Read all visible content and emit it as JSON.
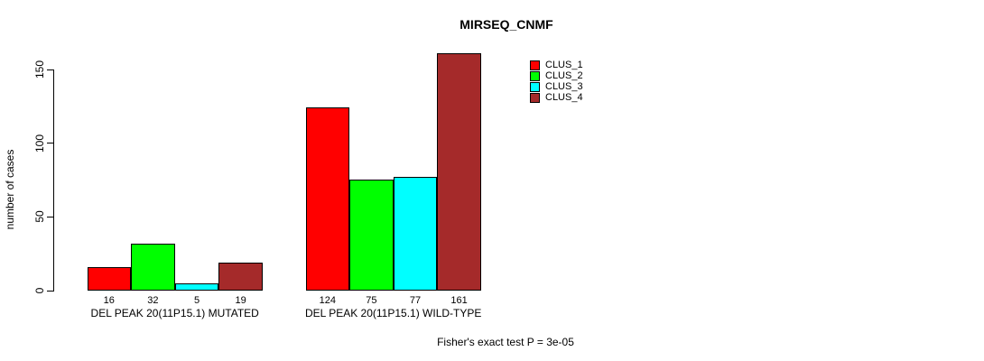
{
  "figure": {
    "title": "MIRSEQ_CNMF",
    "ylabel": "number of cases",
    "footer": "Fisher's exact test P = 3e-05"
  },
  "chart_data": {
    "type": "bar",
    "title": "MIRSEQ_CNMF",
    "xlabel": "",
    "ylabel": "number of cases",
    "categories": [
      "DEL PEAK 20(11P15.1) MUTATED",
      "DEL PEAK 20(11P15.1) WILD-TYPE"
    ],
    "series": [
      {
        "name": "CLUS_1",
        "color": "#FF0000",
        "values": [
          16,
          124
        ]
      },
      {
        "name": "CLUS_2",
        "color": "#00FF00",
        "values": [
          32,
          75
        ]
      },
      {
        "name": "CLUS_3",
        "color": "#00FFFF",
        "values": [
          5,
          77
        ]
      },
      {
        "name": "CLUS_4",
        "color": "#A52A2A",
        "values": [
          19,
          161
        ]
      }
    ],
    "bar_value_labels": [
      [
        "16",
        "32",
        "5",
        "19"
      ],
      [
        "124",
        "75",
        "77",
        "161"
      ]
    ],
    "yticks": [
      0,
      50,
      100,
      150
    ],
    "ylim": [
      0,
      165
    ],
    "grid": false,
    "legend_position": "top-right",
    "bar_border_color": "#000000",
    "annotation": "Fisher's exact test P = 3e-05"
  }
}
